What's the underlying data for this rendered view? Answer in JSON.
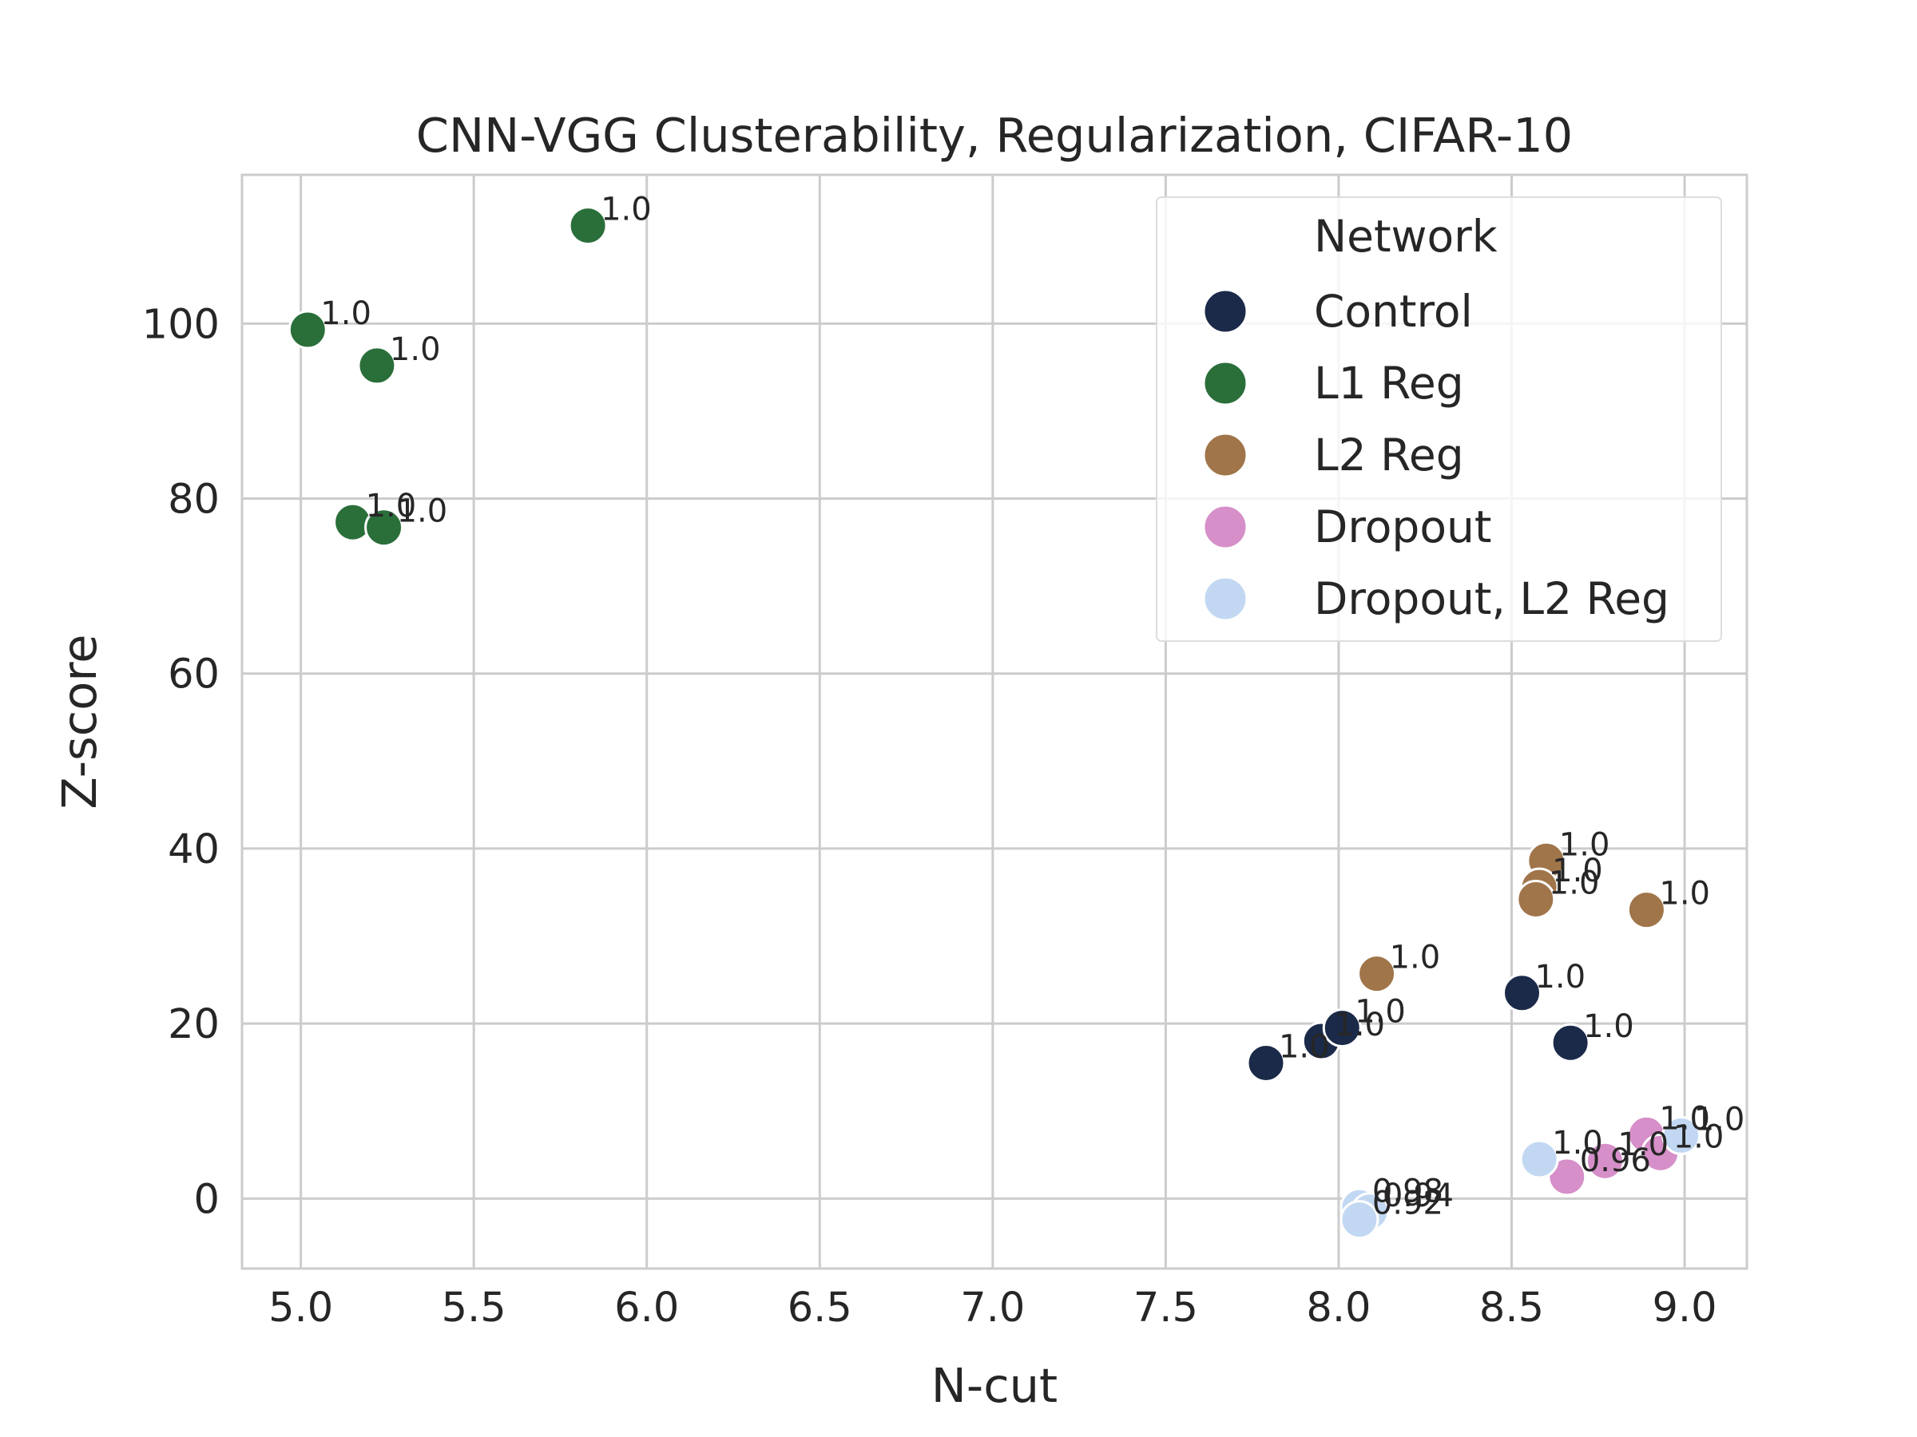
{
  "chart_data": {
    "type": "scatter",
    "title": "CNN-VGG Clusterability, Regularization, CIFAR-10",
    "xlabel": "N-cut",
    "ylabel": "Z-score",
    "xlim": [
      4.83,
      9.18
    ],
    "ylim": [
      -8,
      117
    ],
    "xticks": [
      "5.0",
      "5.5",
      "6.0",
      "6.5",
      "7.0",
      "7.5",
      "8.0",
      "8.5",
      "9.0"
    ],
    "yticks": [
      "0",
      "20",
      "40",
      "60",
      "80",
      "100"
    ],
    "grid": true,
    "legend": {
      "title": "Network",
      "placement": "top-right"
    },
    "series": [
      {
        "name": "Control",
        "color": "#1b2a49",
        "points": [
          {
            "x": 7.79,
            "y": 15.5,
            "label": "1.0"
          },
          {
            "x": 7.95,
            "y": 18.0,
            "label": "1.0"
          },
          {
            "x": 8.01,
            "y": 19.5,
            "label": "1.0"
          },
          {
            "x": 8.53,
            "y": 23.5,
            "label": "1.0"
          },
          {
            "x": 8.67,
            "y": 17.8,
            "label": "1.0"
          }
        ]
      },
      {
        "name": "L1 Reg",
        "color": "#2a6e3a",
        "points": [
          {
            "x": 5.83,
            "y": 111.2,
            "label": "1.0"
          },
          {
            "x": 5.02,
            "y": 99.3,
            "label": "1.0"
          },
          {
            "x": 5.22,
            "y": 95.2,
            "label": "1.0"
          },
          {
            "x": 5.15,
            "y": 77.3,
            "label": "1.0"
          },
          {
            "x": 5.24,
            "y": 76.7,
            "label": "1.0"
          }
        ]
      },
      {
        "name": "L2 Reg",
        "color": "#a0754a",
        "points": [
          {
            "x": 8.6,
            "y": 38.6,
            "label": "1.0"
          },
          {
            "x": 8.58,
            "y": 35.6,
            "label": "1.0"
          },
          {
            "x": 8.57,
            "y": 34.2,
            "label": "1.0"
          },
          {
            "x": 8.89,
            "y": 33.0,
            "label": "1.0"
          },
          {
            "x": 8.11,
            "y": 25.7,
            "label": "1.0"
          }
        ]
      },
      {
        "name": "Dropout",
        "color": "#d68fc8",
        "points": [
          {
            "x": 8.89,
            "y": 7.3,
            "label": "1.0"
          },
          {
            "x": 8.93,
            "y": 5.2,
            "label": "1.0"
          },
          {
            "x": 8.77,
            "y": 4.3,
            "label": "1.0"
          },
          {
            "x": 8.66,
            "y": 2.5,
            "label": "0.96"
          }
        ]
      },
      {
        "name": "Dropout, L2 Reg",
        "color": "#c2d8f2",
        "points": [
          {
            "x": 8.99,
            "y": 7.2,
            "label": "1.0"
          },
          {
            "x": 8.58,
            "y": 4.5,
            "label": "1.0"
          },
          {
            "x": 8.06,
            "y": -1.0,
            "label": "0.98"
          },
          {
            "x": 8.09,
            "y": -1.5,
            "label": "0.94"
          },
          {
            "x": 8.06,
            "y": -2.4,
            "label": "0.92"
          }
        ]
      }
    ]
  }
}
